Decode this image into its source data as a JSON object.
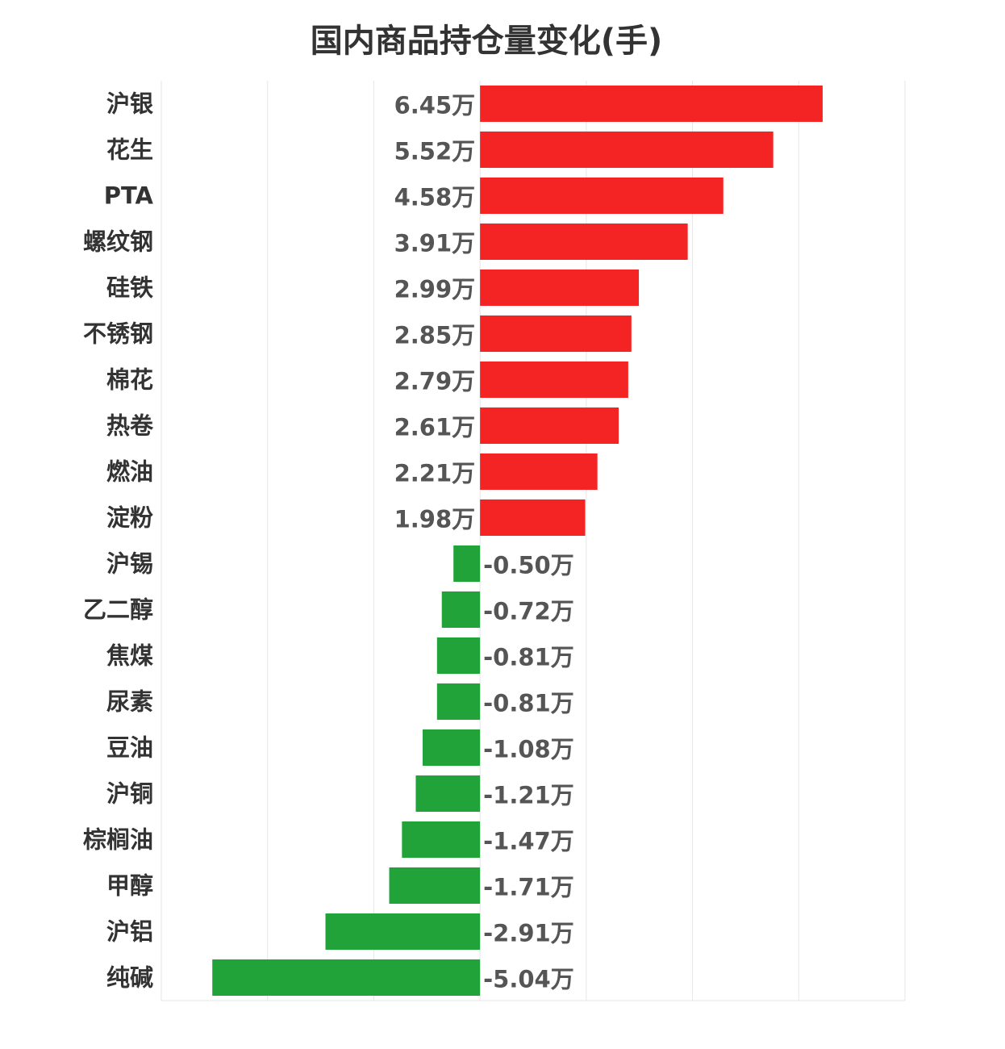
{
  "chart_data": {
    "type": "bar",
    "orientation": "horizontal",
    "title": "国内商品持仓量变化(手)",
    "xlabel": "",
    "ylabel": "",
    "unit_suffix": "万",
    "xlim": [
      -6.0,
      8.0
    ],
    "grid": true,
    "categories": [
      "沪银",
      "花生",
      "PTA",
      "螺纹钢",
      "硅铁",
      "不锈钢",
      "棉花",
      "热卷",
      "燃油",
      "淀粉",
      "沪锡",
      "乙二醇",
      "焦煤",
      "尿素",
      "豆油",
      "沪铜",
      "棕榈油",
      "甲醇",
      "沪铝",
      "纯碱"
    ],
    "values": [
      6.45,
      5.52,
      4.58,
      3.91,
      2.99,
      2.85,
      2.79,
      2.61,
      2.21,
      1.98,
      -0.5,
      -0.72,
      -0.81,
      -0.81,
      -1.08,
      -1.21,
      -1.47,
      -1.71,
      -2.91,
      -5.04
    ],
    "value_labels": [
      "6.45万",
      "5.52万",
      "4.58万",
      "3.91万",
      "2.99万",
      "2.85万",
      "2.79万",
      "2.61万",
      "2.21万",
      "1.98万",
      "-0.50万",
      "-0.72万",
      "-0.81万",
      "-0.81万",
      "-1.08万",
      "-1.21万",
      "-1.47万",
      "-1.71万",
      "-2.91万",
      "-5.04万"
    ],
    "colors": {
      "positive": "#f52424",
      "negative": "#21a33a"
    }
  }
}
